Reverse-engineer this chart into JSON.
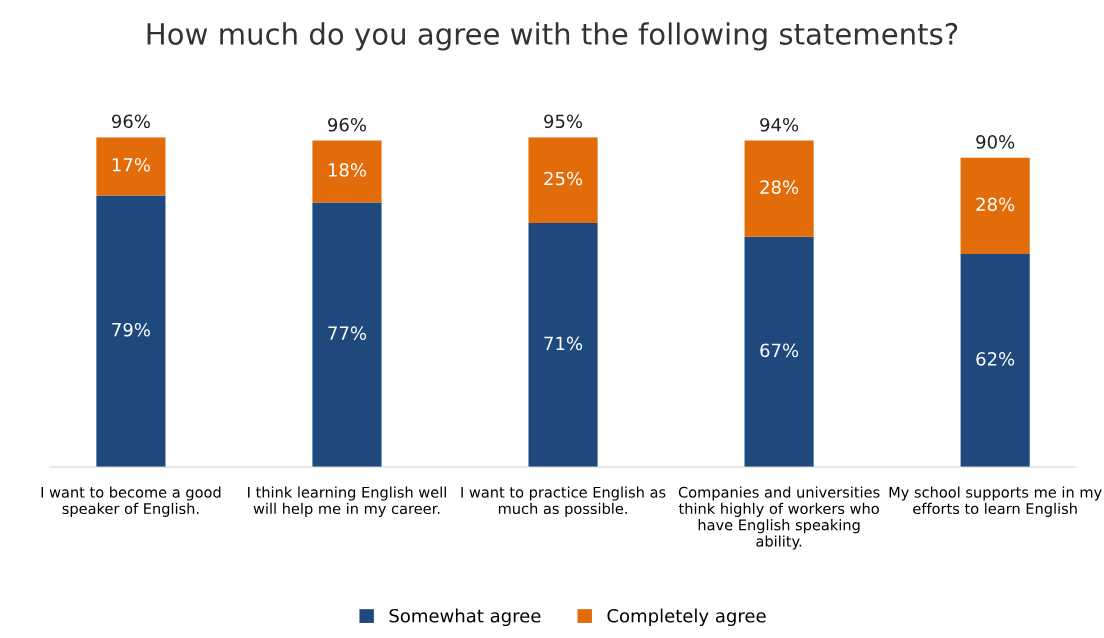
{
  "chart_data": {
    "type": "bar",
    "title": "How much do you agree with the following statements?",
    "categories": [
      "I want to become a good speaker of English.",
      "I think learning English well will help me in my career.",
      "I want to practice English as much as possible.",
      "Companies and universities think highly of workers who have English speaking ability.",
      "My school supports me in my efforts to learn English"
    ],
    "stacked": true,
    "series": [
      {
        "name": "Somewhat agree",
        "color": "#1f497d",
        "values": [
          79,
          77,
          71,
          67,
          62
        ],
        "value_labels": [
          "79%",
          "77%",
          "71%",
          "67%",
          "62%"
        ]
      },
      {
        "name": "Completely agree",
        "color": "#e36c0a",
        "values": [
          17,
          18,
          25,
          28,
          28
        ],
        "value_labels": [
          "17%",
          "18%",
          "25%",
          "28%",
          "28%"
        ]
      }
    ],
    "totals": [
      "96%",
      "96%",
      "95%",
      "94%",
      "90%"
    ],
    "legend": "bottom",
    "grid": false
  }
}
